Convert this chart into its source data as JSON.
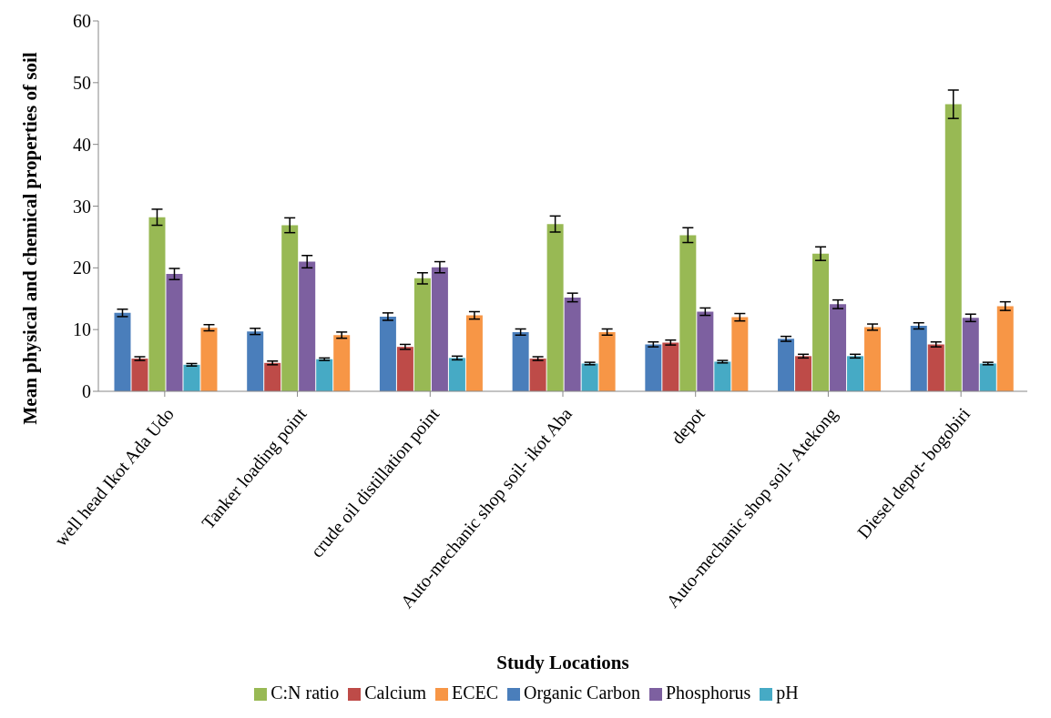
{
  "chart_data": {
    "type": "bar",
    "xlabel": "Study Locations",
    "ylabel": "Mean physical and chemical properties of soil",
    "categories": [
      "well head Ikot Ada Udo",
      "Tanker loading point",
      "crude oil distillation point",
      "Auto-mechanic shop soil- ikot Aba",
      "depot",
      "Auto-mechanic shop soil- Atekong",
      "Diesel depot- bogobiri"
    ],
    "series": [
      {
        "name": "Organic Carbon",
        "color": "#4a7ebb",
        "values": [
          12.7,
          9.7,
          12.1,
          9.6,
          7.6,
          8.5,
          10.6
        ],
        "errors": [
          0.6,
          0.5,
          0.6,
          0.5,
          0.4,
          0.4,
          0.5
        ]
      },
      {
        "name": "Calcium",
        "color": "#be4b48",
        "values": [
          5.3,
          4.6,
          7.2,
          5.3,
          7.9,
          5.7,
          7.6
        ],
        "errors": [
          0.3,
          0.3,
          0.4,
          0.3,
          0.4,
          0.3,
          0.4
        ]
      },
      {
        "name": "C:N ratio",
        "color": "#98b954",
        "values": [
          28.2,
          26.9,
          18.3,
          27.1,
          25.3,
          22.3,
          46.5
        ],
        "errors": [
          1.3,
          1.2,
          0.9,
          1.3,
          1.2,
          1.1,
          2.3
        ]
      },
      {
        "name": "Phosphorus",
        "color": "#7d60a0",
        "values": [
          19.0,
          21.0,
          20.1,
          15.2,
          12.9,
          14.1,
          11.9
        ],
        "errors": [
          0.9,
          1.0,
          0.9,
          0.7,
          0.6,
          0.7,
          0.6
        ]
      },
      {
        "name": "pH",
        "color": "#46aac5",
        "values": [
          4.3,
          5.2,
          5.4,
          4.5,
          4.8,
          5.7,
          4.5
        ],
        "errors": [
          0.2,
          0.2,
          0.3,
          0.2,
          0.2,
          0.3,
          0.2
        ]
      },
      {
        "name": "ECEC",
        "color": "#f79646",
        "values": [
          10.3,
          9.1,
          12.3,
          9.6,
          12.0,
          10.4,
          13.8
        ],
        "errors": [
          0.5,
          0.5,
          0.6,
          0.5,
          0.6,
          0.5,
          0.7
        ]
      }
    ],
    "ylim": [
      0,
      60
    ],
    "yticks": [
      0,
      10,
      20,
      30,
      40,
      50,
      60
    ],
    "grid": false,
    "legend": "bottom"
  }
}
